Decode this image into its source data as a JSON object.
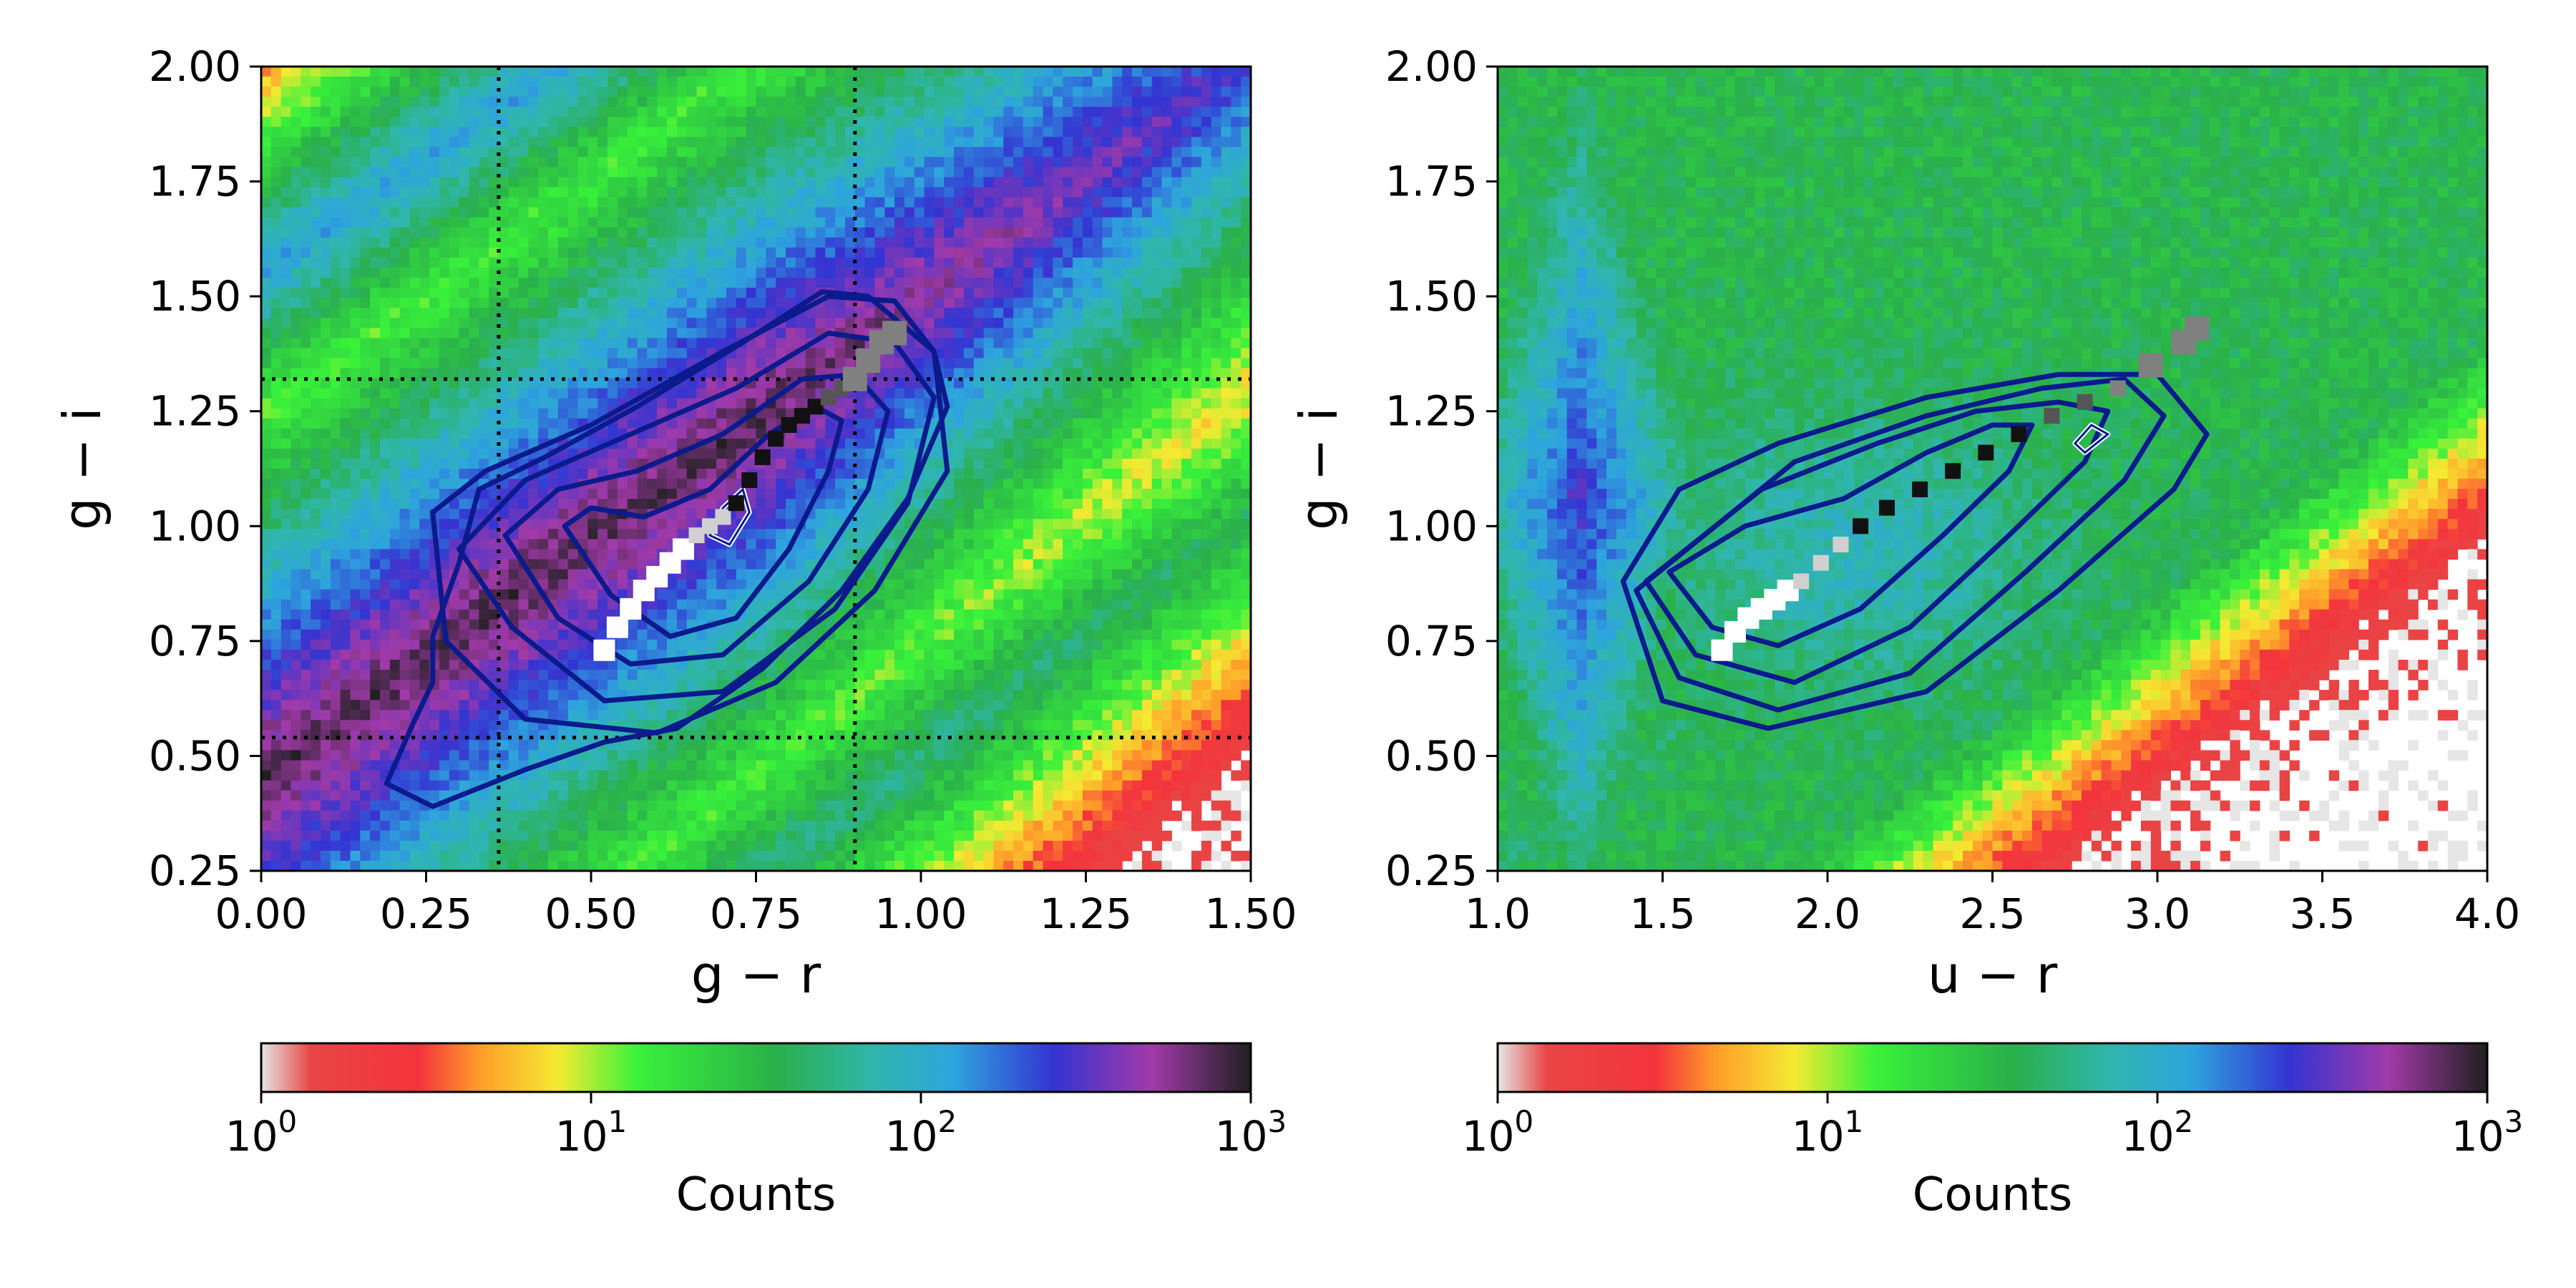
{
  "chart_data": [
    {
      "type": "heatmap",
      "xlabel": "g − r",
      "ylabel": "g − i",
      "xlim": [
        0.0,
        1.5
      ],
      "ylim": [
        0.25,
        2.0
      ],
      "xticks": [
        "0.00",
        "0.25",
        "0.50",
        "0.75",
        "1.00",
        "1.25",
        "1.50"
      ],
      "yticks": [
        "0.25",
        "0.50",
        "0.75",
        "1.00",
        "1.25",
        "1.50",
        "1.75",
        "2.00"
      ],
      "colorscale": "log",
      "colorbar": {
        "label": "Counts",
        "range": [
          1,
          1000
        ],
        "ticks": [
          "10",
          "10",
          "10",
          "10"
        ],
        "tick_exponents": [
          "0",
          "1",
          "2",
          "3"
        ]
      },
      "reference_lines": {
        "vertical": [
          0.36,
          0.9
        ],
        "horizontal": [
          0.54,
          1.32
        ],
        "style": "dotted"
      },
      "contours": [
        [
          [
            0.46,
            1.0
          ],
          [
            0.53,
            0.85
          ],
          [
            0.62,
            0.76
          ],
          [
            0.72,
            0.8
          ],
          [
            0.8,
            0.95
          ],
          [
            0.86,
            1.12
          ],
          [
            0.88,
            1.23
          ],
          [
            0.84,
            1.26
          ],
          [
            0.77,
            1.2
          ],
          [
            0.68,
            1.08
          ],
          [
            0.58,
            1.02
          ],
          [
            0.5,
            1.04
          ]
        ],
        [
          [
            0.37,
            0.98
          ],
          [
            0.45,
            0.8
          ],
          [
            0.56,
            0.7
          ],
          [
            0.7,
            0.72
          ],
          [
            0.83,
            0.88
          ],
          [
            0.92,
            1.08
          ],
          [
            0.95,
            1.25
          ],
          [
            0.9,
            1.33
          ],
          [
            0.82,
            1.32
          ],
          [
            0.7,
            1.2
          ],
          [
            0.57,
            1.12
          ],
          [
            0.45,
            1.08
          ]
        ],
        [
          [
            0.3,
            0.95
          ],
          [
            0.38,
            0.78
          ],
          [
            0.52,
            0.62
          ],
          [
            0.7,
            0.64
          ],
          [
            0.87,
            0.82
          ],
          [
            0.98,
            1.05
          ],
          [
            1.02,
            1.28
          ],
          [
            0.96,
            1.4
          ],
          [
            0.86,
            1.42
          ],
          [
            0.72,
            1.3
          ],
          [
            0.56,
            1.2
          ],
          [
            0.4,
            1.1
          ]
        ],
        [
          [
            0.26,
            1.03
          ],
          [
            0.28,
            0.75
          ],
          [
            0.4,
            0.58
          ],
          [
            0.6,
            0.55
          ],
          [
            0.78,
            0.66
          ],
          [
            0.93,
            0.86
          ],
          [
            1.04,
            1.12
          ],
          [
            1.02,
            1.38
          ],
          [
            0.96,
            1.49
          ],
          [
            0.86,
            1.5
          ],
          [
            0.7,
            1.38
          ],
          [
            0.5,
            1.22
          ],
          [
            0.34,
            1.12
          ]
        ],
        [
          [
            0.19,
            0.44
          ],
          [
            0.26,
            0.39
          ],
          [
            0.4,
            0.47
          ],
          [
            0.52,
            0.53
          ],
          [
            0.63,
            0.56
          ],
          [
            0.76,
            0.69
          ],
          [
            0.88,
            0.86
          ],
          [
            0.98,
            1.06
          ],
          [
            1.04,
            1.26
          ],
          [
            1.02,
            1.38
          ],
          [
            0.92,
            1.5
          ],
          [
            0.85,
            1.51
          ],
          [
            0.73,
            1.4
          ],
          [
            0.57,
            1.26
          ],
          [
            0.43,
            1.15
          ],
          [
            0.33,
            1.08
          ],
          [
            0.3,
            0.92
          ],
          [
            0.26,
            0.76
          ],
          [
            0.26,
            0.66
          ],
          [
            0.23,
            0.57
          ]
        ],
        [
          [
            0.68,
            0.98
          ],
          [
            0.7,
            1.04
          ],
          [
            0.73,
            1.08
          ],
          [
            0.74,
            1.03
          ],
          [
            0.71,
            0.96
          ]
        ]
      ],
      "median_track": {
        "x": [
          0.52,
          0.54,
          0.56,
          0.58,
          0.6,
          0.62,
          0.64,
          0.66,
          0.68,
          0.7,
          0.72,
          0.74,
          0.76,
          0.78,
          0.8,
          0.82,
          0.84,
          0.86,
          0.88,
          0.9,
          0.92,
          0.94,
          0.96
        ],
        "y": [
          0.73,
          0.78,
          0.82,
          0.86,
          0.89,
          0.92,
          0.95,
          0.98,
          1.0,
          1.02,
          1.05,
          1.1,
          1.15,
          1.19,
          1.22,
          1.24,
          1.26,
          1.28,
          1.3,
          1.32,
          1.36,
          1.4,
          1.42
        ]
      }
    },
    {
      "type": "heatmap",
      "xlabel": "u − r",
      "ylabel": "g − i",
      "xlim": [
        1.0,
        4.0
      ],
      "ylim": [
        0.25,
        2.0
      ],
      "xticks": [
        "1.0",
        "1.5",
        "2.0",
        "2.5",
        "3.0",
        "3.5",
        "4.0"
      ],
      "yticks": [
        "0.25",
        "0.50",
        "0.75",
        "1.00",
        "1.25",
        "1.50",
        "1.75",
        "2.00"
      ],
      "colorscale": "log",
      "colorbar": {
        "label": "Counts",
        "range": [
          1,
          1000
        ],
        "ticks": [
          "10",
          "10",
          "10",
          "10"
        ],
        "tick_exponents": [
          "0",
          "1",
          "2",
          "3"
        ]
      },
      "contours": [
        [
          [
            1.52,
            0.9
          ],
          [
            1.65,
            0.78
          ],
          [
            1.85,
            0.74
          ],
          [
            2.1,
            0.82
          ],
          [
            2.35,
            0.98
          ],
          [
            2.55,
            1.12
          ],
          [
            2.62,
            1.22
          ],
          [
            2.5,
            1.22
          ],
          [
            2.3,
            1.16
          ],
          [
            2.05,
            1.06
          ],
          [
            1.75,
            1.0
          ]
        ],
        [
          [
            1.45,
            0.88
          ],
          [
            1.6,
            0.72
          ],
          [
            1.9,
            0.66
          ],
          [
            2.25,
            0.78
          ],
          [
            2.55,
            0.98
          ],
          [
            2.78,
            1.14
          ],
          [
            2.85,
            1.25
          ],
          [
            2.7,
            1.27
          ],
          [
            2.45,
            1.25
          ],
          [
            2.15,
            1.18
          ],
          [
            1.8,
            1.08
          ]
        ],
        [
          [
            1.42,
            0.86
          ],
          [
            1.55,
            0.67
          ],
          [
            1.85,
            0.6
          ],
          [
            2.25,
            0.68
          ],
          [
            2.6,
            0.9
          ],
          [
            2.9,
            1.1
          ],
          [
            3.02,
            1.24
          ],
          [
            2.9,
            1.32
          ],
          [
            2.65,
            1.3
          ],
          [
            2.3,
            1.24
          ],
          [
            1.9,
            1.14
          ]
        ],
        [
          [
            1.38,
            0.88
          ],
          [
            1.5,
            0.62
          ],
          [
            1.82,
            0.56
          ],
          [
            2.3,
            0.64
          ],
          [
            2.7,
            0.86
          ],
          [
            3.05,
            1.08
          ],
          [
            3.15,
            1.2
          ],
          [
            3.0,
            1.33
          ],
          [
            2.7,
            1.33
          ],
          [
            2.3,
            1.28
          ],
          [
            1.85,
            1.18
          ],
          [
            1.55,
            1.08
          ]
        ],
        [
          [
            2.75,
            1.18
          ],
          [
            2.8,
            1.22
          ],
          [
            2.85,
            1.2
          ],
          [
            2.78,
            1.16
          ]
        ]
      ],
      "median_track": {
        "x": [
          1.68,
          1.72,
          1.76,
          1.8,
          1.84,
          1.88,
          1.92,
          1.98,
          2.04,
          2.1,
          2.18,
          2.28,
          2.38,
          2.48,
          2.58,
          2.68,
          2.78,
          2.88,
          2.98,
          3.08,
          3.12
        ],
        "y": [
          0.73,
          0.77,
          0.8,
          0.82,
          0.84,
          0.86,
          0.88,
          0.92,
          0.96,
          1.0,
          1.04,
          1.08,
          1.12,
          1.16,
          1.2,
          1.24,
          1.27,
          1.3,
          1.35,
          1.4,
          1.43
        ]
      }
    }
  ]
}
